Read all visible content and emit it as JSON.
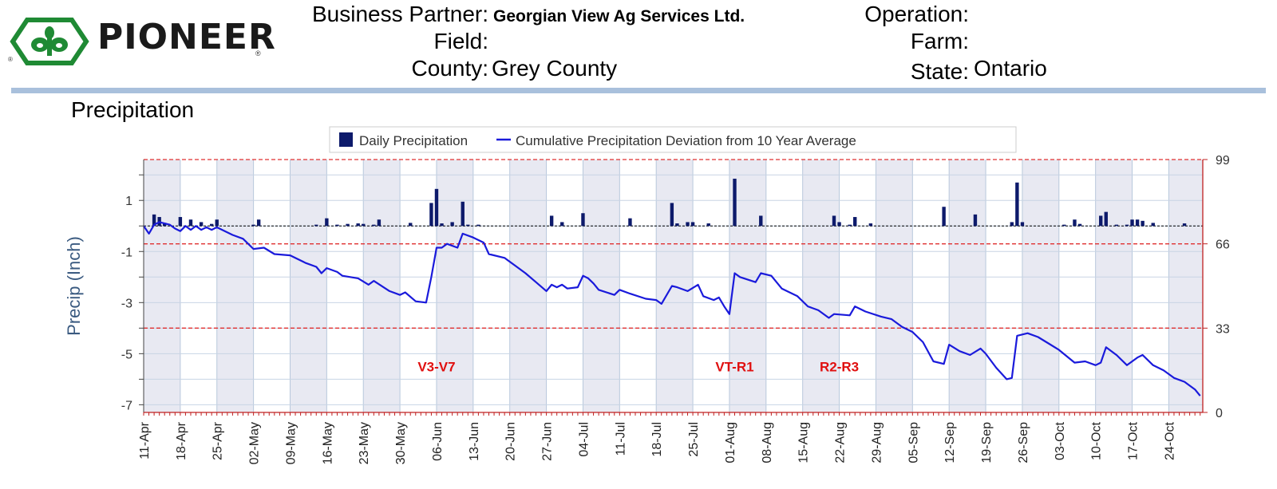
{
  "header": {
    "brand": "PIONEER",
    "business_partner_label": "Business Partner:",
    "business_partner_value": "Georgian View Ag Services Ltd.",
    "field_label": "Field:",
    "field_value": "",
    "county_label": "County:",
    "county_value": "Grey County",
    "operation_label": "Operation:",
    "operation_value": "",
    "farm_label": "Farm:",
    "farm_value": "",
    "state_label": "State:",
    "state_value": "Ontario"
  },
  "section_title": "Precipitation",
  "colors": {
    "bar": "#0d1a6b",
    "line": "#1a1adb",
    "ref_line": "#e03030",
    "stage_label": "#e01010",
    "shade": "#e8e9f2",
    "axis": "#3a5a80",
    "right_axis": "#c02020"
  },
  "chart_data": {
    "type": "bar+line",
    "legend": [
      "Daily Precipitation",
      "Cumulative Precipitation Deviation from 10 Year Average"
    ],
    "legend_position": "top",
    "ylabel": "Precip (Inch)",
    "ylim": [
      -7.3,
      2.6
    ],
    "yticks": [
      1,
      -1,
      -3,
      -5,
      -7
    ],
    "y2lim": [
      0,
      99
    ],
    "y2ticks": [
      99,
      66,
      33,
      0
    ],
    "reference_lines_y2": [
      99,
      66,
      33
    ],
    "grid": true,
    "x_start": "11-Apr",
    "x_end": "30-Oct",
    "xtick_labels": [
      "11-Apr",
      "18-Apr",
      "25-Apr",
      "02-May",
      "09-May",
      "16-May",
      "23-May",
      "30-May",
      "06-Jun",
      "13-Jun",
      "20-Jun",
      "27-Jun",
      "04-Jul",
      "11-Jul",
      "18-Jul",
      "25-Jul",
      "01-Aug",
      "08-Aug",
      "15-Aug",
      "22-Aug",
      "29-Aug",
      "05-Sep",
      "12-Sep",
      "19-Sep",
      "26-Sep",
      "03-Oct",
      "10-Oct",
      "17-Oct",
      "24-Oct"
    ],
    "stage_labels": [
      {
        "text": "V3-V7",
        "date": "06-Jun",
        "y": -5.5
      },
      {
        "text": "VT-R1",
        "date": "02-Aug",
        "y": -5.5
      },
      {
        "text": "R2-R3",
        "date": "22-Aug",
        "y": -5.5
      }
    ],
    "daily_precip": [
      {
        "date": "13-Apr",
        "value": 0.45
      },
      {
        "date": "14-Apr",
        "value": 0.35
      },
      {
        "date": "15-Apr",
        "value": 0.12
      },
      {
        "date": "18-Apr",
        "value": 0.35
      },
      {
        "date": "20-Apr",
        "value": 0.25
      },
      {
        "date": "22-Apr",
        "value": 0.15
      },
      {
        "date": "24-Apr",
        "value": 0.08
      },
      {
        "date": "25-Apr",
        "value": 0.25
      },
      {
        "date": "03-May",
        "value": 0.25
      },
      {
        "date": "02-May",
        "value": 0.05
      },
      {
        "date": "14-May",
        "value": 0.05
      },
      {
        "date": "16-May",
        "value": 0.3
      },
      {
        "date": "18-May",
        "value": 0.05
      },
      {
        "date": "20-May",
        "value": 0.08
      },
      {
        "date": "22-May",
        "value": 0.1
      },
      {
        "date": "23-May",
        "value": 0.08
      },
      {
        "date": "25-May",
        "value": 0.05
      },
      {
        "date": "26-May",
        "value": 0.25
      },
      {
        "date": "01-Jun",
        "value": 0.12
      },
      {
        "date": "05-Jun",
        "value": 0.9
      },
      {
        "date": "06-Jun",
        "value": 1.45
      },
      {
        "date": "07-Jun",
        "value": 0.1
      },
      {
        "date": "09-Jun",
        "value": 0.15
      },
      {
        "date": "11-Jun",
        "value": 0.95
      },
      {
        "date": "12-Jun",
        "value": 0.05
      },
      {
        "date": "14-Jun",
        "value": 0.05
      },
      {
        "date": "28-Jun",
        "value": 0.4
      },
      {
        "date": "30-Jun",
        "value": 0.15
      },
      {
        "date": "04-Jul",
        "value": 0.5
      },
      {
        "date": "13-Jul",
        "value": 0.3
      },
      {
        "date": "21-Jul",
        "value": 0.9
      },
      {
        "date": "22-Jul",
        "value": 0.1
      },
      {
        "date": "24-Jul",
        "value": 0.15
      },
      {
        "date": "25-Jul",
        "value": 0.15
      },
      {
        "date": "28-Jul",
        "value": 0.1
      },
      {
        "date": "02-Aug",
        "value": 1.85
      },
      {
        "date": "07-Aug",
        "value": 0.4
      },
      {
        "date": "21-Aug",
        "value": 0.4
      },
      {
        "date": "22-Aug",
        "value": 0.15
      },
      {
        "date": "24-Aug",
        "value": 0.05
      },
      {
        "date": "25-Aug",
        "value": 0.35
      },
      {
        "date": "28-Aug",
        "value": 0.1
      },
      {
        "date": "11-Sep",
        "value": 0.75
      },
      {
        "date": "17-Sep",
        "value": 0.45
      },
      {
        "date": "24-Sep",
        "value": 0.15
      },
      {
        "date": "25-Sep",
        "value": 1.7
      },
      {
        "date": "26-Sep",
        "value": 0.15
      },
      {
        "date": "04-Oct",
        "value": 0.05
      },
      {
        "date": "06-Oct",
        "value": 0.25
      },
      {
        "date": "07-Oct",
        "value": 0.08
      },
      {
        "date": "11-Oct",
        "value": 0.4
      },
      {
        "date": "12-Oct",
        "value": 0.55
      },
      {
        "date": "14-Oct",
        "value": 0.05
      },
      {
        "date": "16-Oct",
        "value": 0.05
      },
      {
        "date": "17-Oct",
        "value": 0.25
      },
      {
        "date": "18-Oct",
        "value": 0.25
      },
      {
        "date": "19-Oct",
        "value": 0.2
      },
      {
        "date": "21-Oct",
        "value": 0.12
      },
      {
        "date": "27-Oct",
        "value": 0.1
      }
    ],
    "cumulative_deviation": [
      {
        "date": "11-Apr",
        "value": 0.0
      },
      {
        "date": "12-Apr",
        "value": -0.3
      },
      {
        "date": "13-Apr",
        "value": 0.05
      },
      {
        "date": "14-Apr",
        "value": 0.15
      },
      {
        "date": "16-Apr",
        "value": 0.05
      },
      {
        "date": "17-Apr",
        "value": -0.1
      },
      {
        "date": "18-Apr",
        "value": -0.2
      },
      {
        "date": "19-Apr",
        "value": 0.0
      },
      {
        "date": "20-Apr",
        "value": -0.15
      },
      {
        "date": "21-Apr",
        "value": 0.0
      },
      {
        "date": "22-Apr",
        "value": -0.15
      },
      {
        "date": "23-Apr",
        "value": -0.05
      },
      {
        "date": "24-Apr",
        "value": -0.15
      },
      {
        "date": "25-Apr",
        "value": -0.05
      },
      {
        "date": "26-Apr",
        "value": -0.15
      },
      {
        "date": "28-Apr",
        "value": -0.35
      },
      {
        "date": "30-Apr",
        "value": -0.5
      },
      {
        "date": "02-May",
        "value": -0.9
      },
      {
        "date": "04-May",
        "value": -0.85
      },
      {
        "date": "06-May",
        "value": -1.1
      },
      {
        "date": "09-May",
        "value": -1.15
      },
      {
        "date": "12-May",
        "value": -1.45
      },
      {
        "date": "14-May",
        "value": -1.6
      },
      {
        "date": "15-May",
        "value": -1.85
      },
      {
        "date": "16-May",
        "value": -1.65
      },
      {
        "date": "18-May",
        "value": -1.8
      },
      {
        "date": "19-May",
        "value": -1.95
      },
      {
        "date": "22-May",
        "value": -2.05
      },
      {
        "date": "24-May",
        "value": -2.3
      },
      {
        "date": "25-May",
        "value": -2.15
      },
      {
        "date": "28-May",
        "value": -2.55
      },
      {
        "date": "30-May",
        "value": -2.7
      },
      {
        "date": "31-May",
        "value": -2.6
      },
      {
        "date": "02-Jun",
        "value": -2.95
      },
      {
        "date": "04-Jun",
        "value": -3.0
      },
      {
        "date": "05-Jun",
        "value": -2.0
      },
      {
        "date": "06-Jun",
        "value": -0.85
      },
      {
        "date": "07-Jun",
        "value": -0.85
      },
      {
        "date": "08-Jun",
        "value": -0.7
      },
      {
        "date": "10-Jun",
        "value": -0.85
      },
      {
        "date": "11-Jun",
        "value": -0.3
      },
      {
        "date": "13-Jun",
        "value": -0.45
      },
      {
        "date": "15-Jun",
        "value": -0.65
      },
      {
        "date": "16-Jun",
        "value": -1.1
      },
      {
        "date": "19-Jun",
        "value": -1.25
      },
      {
        "date": "21-Jun",
        "value": -1.55
      },
      {
        "date": "23-Jun",
        "value": -1.85
      },
      {
        "date": "25-Jun",
        "value": -2.2
      },
      {
        "date": "27-Jun",
        "value": -2.55
      },
      {
        "date": "28-Jun",
        "value": -2.3
      },
      {
        "date": "29-Jun",
        "value": -2.4
      },
      {
        "date": "30-Jun",
        "value": -2.3
      },
      {
        "date": "01-Jul",
        "value": -2.45
      },
      {
        "date": "03-Jul",
        "value": -2.4
      },
      {
        "date": "04-Jul",
        "value": -1.95
      },
      {
        "date": "05-Jul",
        "value": -2.05
      },
      {
        "date": "06-Jul",
        "value": -2.25
      },
      {
        "date": "07-Jul",
        "value": -2.5
      },
      {
        "date": "10-Jul",
        "value": -2.7
      },
      {
        "date": "11-Jul",
        "value": -2.5
      },
      {
        "date": "13-Jul",
        "value": -2.65
      },
      {
        "date": "16-Jul",
        "value": -2.85
      },
      {
        "date": "18-Jul",
        "value": -2.9
      },
      {
        "date": "19-Jul",
        "value": -3.05
      },
      {
        "date": "21-Jul",
        "value": -2.35
      },
      {
        "date": "22-Jul",
        "value": -2.4
      },
      {
        "date": "24-Jul",
        "value": -2.55
      },
      {
        "date": "26-Jul",
        "value": -2.3
      },
      {
        "date": "27-Jul",
        "value": -2.75
      },
      {
        "date": "29-Jul",
        "value": -2.9
      },
      {
        "date": "30-Jul",
        "value": -2.8
      },
      {
        "date": "31-Jul",
        "value": -3.15
      },
      {
        "date": "01-Aug",
        "value": -3.45
      },
      {
        "date": "02-Aug",
        "value": -1.85
      },
      {
        "date": "03-Aug",
        "value": -2.0
      },
      {
        "date": "06-Aug",
        "value": -2.2
      },
      {
        "date": "07-Aug",
        "value": -1.85
      },
      {
        "date": "09-Aug",
        "value": -1.95
      },
      {
        "date": "11-Aug",
        "value": -2.45
      },
      {
        "date": "14-Aug",
        "value": -2.75
      },
      {
        "date": "16-Aug",
        "value": -3.15
      },
      {
        "date": "18-Aug",
        "value": -3.3
      },
      {
        "date": "20-Aug",
        "value": -3.6
      },
      {
        "date": "21-Aug",
        "value": -3.45
      },
      {
        "date": "24-Aug",
        "value": -3.5
      },
      {
        "date": "25-Aug",
        "value": -3.15
      },
      {
        "date": "27-Aug",
        "value": -3.35
      },
      {
        "date": "30-Aug",
        "value": -3.55
      },
      {
        "date": "01-Sep",
        "value": -3.65
      },
      {
        "date": "03-Sep",
        "value": -3.95
      },
      {
        "date": "05-Sep",
        "value": -4.15
      },
      {
        "date": "07-Sep",
        "value": -4.55
      },
      {
        "date": "09-Sep",
        "value": -5.3
      },
      {
        "date": "11-Sep",
        "value": -5.4
      },
      {
        "date": "12-Sep",
        "value": -4.65
      },
      {
        "date": "14-Sep",
        "value": -4.9
      },
      {
        "date": "16-Sep",
        "value": -5.05
      },
      {
        "date": "18-Sep",
        "value": -4.8
      },
      {
        "date": "19-Sep",
        "value": -5.0
      },
      {
        "date": "21-Sep",
        "value": -5.55
      },
      {
        "date": "23-Sep",
        "value": -6.0
      },
      {
        "date": "24-Sep",
        "value": -5.95
      },
      {
        "date": "25-Sep",
        "value": -4.3
      },
      {
        "date": "27-Sep",
        "value": -4.2
      },
      {
        "date": "29-Sep",
        "value": -4.35
      },
      {
        "date": "01-Oct",
        "value": -4.6
      },
      {
        "date": "03-Oct",
        "value": -4.85
      },
      {
        "date": "06-Oct",
        "value": -5.35
      },
      {
        "date": "08-Oct",
        "value": -5.3
      },
      {
        "date": "10-Oct",
        "value": -5.45
      },
      {
        "date": "11-Oct",
        "value": -5.35
      },
      {
        "date": "12-Oct",
        "value": -4.75
      },
      {
        "date": "14-Oct",
        "value": -5.05
      },
      {
        "date": "16-Oct",
        "value": -5.45
      },
      {
        "date": "18-Oct",
        "value": -5.15
      },
      {
        "date": "19-Oct",
        "value": -5.05
      },
      {
        "date": "21-Oct",
        "value": -5.45
      },
      {
        "date": "23-Oct",
        "value": -5.65
      },
      {
        "date": "25-Oct",
        "value": -5.95
      },
      {
        "date": "27-Oct",
        "value": -6.1
      },
      {
        "date": "29-Oct",
        "value": -6.4
      },
      {
        "date": "30-Oct",
        "value": -6.65
      }
    ]
  }
}
